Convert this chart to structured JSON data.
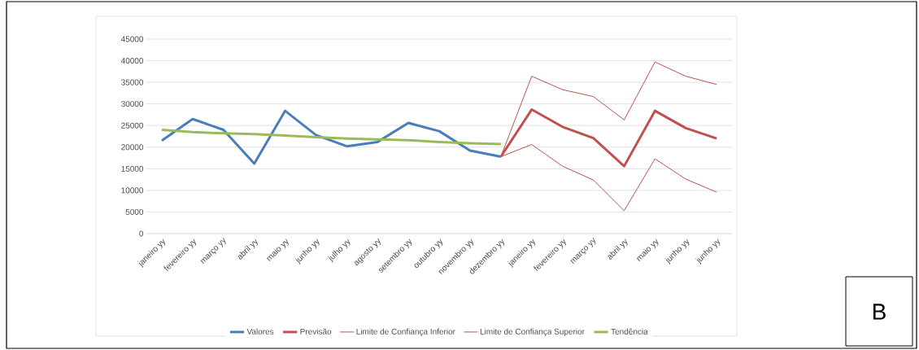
{
  "chart_data": {
    "type": "line",
    "categories": [
      "janeiro yy",
      "fevereiro yy",
      "março yy",
      "abril yy",
      "maio yy",
      "junho yy",
      "julho yy",
      "agosto yy",
      "setembro yy",
      "outubro yy",
      "novembro yy",
      "dezembro yy",
      "janeiro yy",
      "fevereiro yy",
      "março yy",
      "abril yy",
      "maio yy",
      "junho yy",
      "junho yy"
    ],
    "series": [
      {
        "name": "Valores",
        "color": "#4a7ebb",
        "values": [
          21500,
          26500,
          24000,
          16200,
          28400,
          22800,
          20200,
          21200,
          25600,
          23700,
          19200,
          17800,
          null,
          null,
          null,
          null,
          null,
          null,
          null
        ]
      },
      {
        "name": "Previsão",
        "color": "#c0504d",
        "values": [
          null,
          null,
          null,
          null,
          null,
          null,
          null,
          null,
          null,
          null,
          null,
          17800,
          28700,
          24700,
          22100,
          15600,
          28400,
          24400,
          22000
        ]
      },
      {
        "name": "Limite de Confiança Inferior",
        "color": "#c0504d",
        "values": [
          null,
          null,
          null,
          null,
          null,
          null,
          null,
          null,
          null,
          null,
          null,
          17800,
          20600,
          15600,
          12400,
          5300,
          17300,
          12600,
          9600
        ]
      },
      {
        "name": "Limite de Confiança Superior",
        "color": "#c0504d",
        "values": [
          null,
          null,
          null,
          null,
          null,
          null,
          null,
          null,
          null,
          null,
          null,
          17800,
          36400,
          33300,
          31700,
          26300,
          39700,
          36400,
          34500
        ]
      },
      {
        "name": "Tendência",
        "color": "#9bbb59",
        "values": [
          24000,
          23500,
          23200,
          23000,
          22700,
          22300,
          22000,
          21800,
          21600,
          21200,
          20900,
          20700,
          null,
          null,
          null,
          null,
          null,
          null,
          null
        ]
      }
    ],
    "ylim": [
      0,
      45000
    ],
    "yticks": [
      0,
      5000,
      10000,
      15000,
      20000,
      25000,
      30000,
      35000,
      40000,
      45000
    ],
    "grid": "y",
    "legend": "bottom",
    "marker": "none",
    "line_style": "solid",
    "annotations": [
      "B"
    ]
  }
}
